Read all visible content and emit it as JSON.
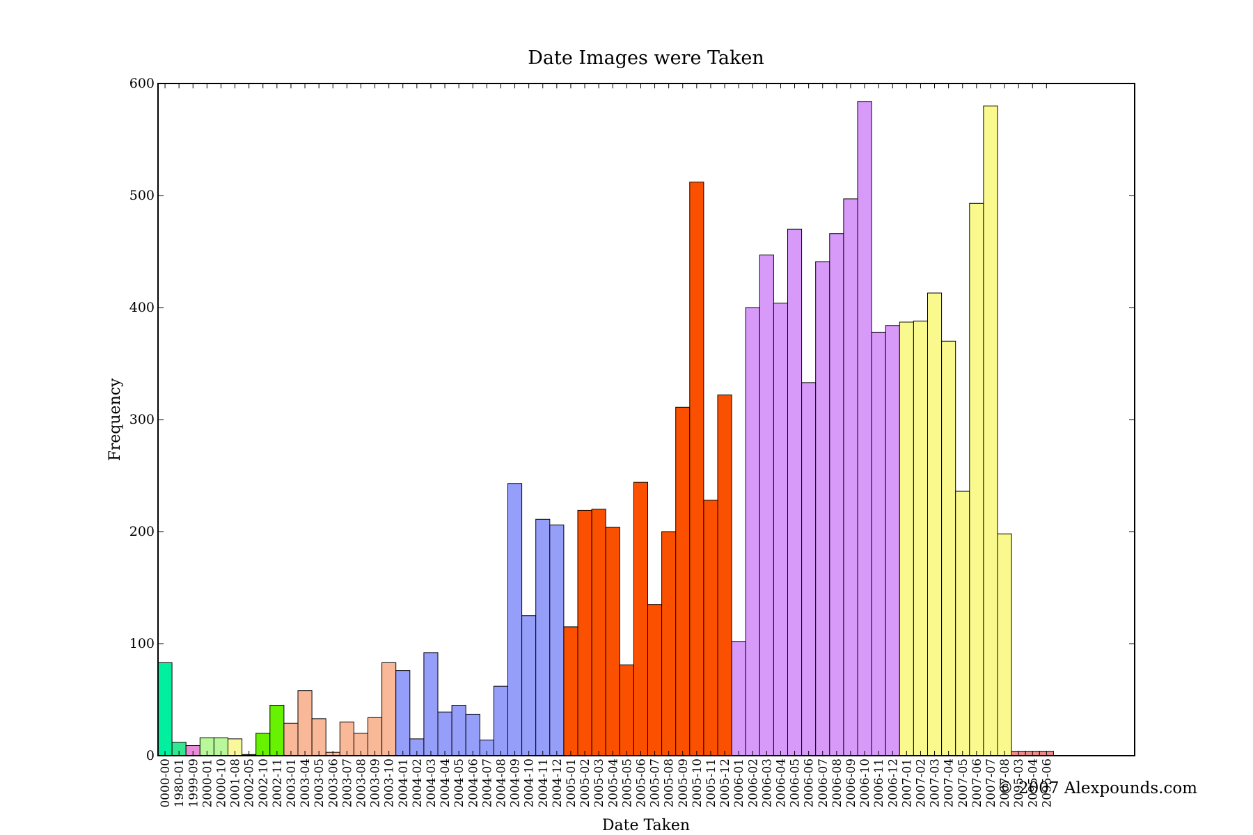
{
  "chart_data": {
    "type": "bar",
    "title": "Date Images were Taken",
    "xlabel": "Date Taken",
    "ylabel": "Frequency",
    "ylim": [
      0,
      600
    ],
    "yticks": [
      0,
      100,
      200,
      300,
      400,
      500,
      600
    ],
    "grid": false,
    "legend": "none",
    "bars": [
      {
        "label": "0000-00",
        "value": 83,
        "color": "#00f0a0"
      },
      {
        "label": "1980-01",
        "value": 12,
        "color": "#33e690"
      },
      {
        "label": "1999-09",
        "value": 9,
        "color": "#e98cd8"
      },
      {
        "label": "2000-01",
        "value": 16,
        "color": "#b8f79a"
      },
      {
        "label": "2000-10",
        "value": 16,
        "color": "#b8f79a"
      },
      {
        "label": "2001-08",
        "value": 15,
        "color": "#f9f89a"
      },
      {
        "label": "2002-05",
        "value": 1,
        "color": "#66f200"
      },
      {
        "label": "2002-10",
        "value": 20,
        "color": "#66f200"
      },
      {
        "label": "2002-11",
        "value": 45,
        "color": "#66f200"
      },
      {
        "label": "2003-01",
        "value": 29,
        "color": "#f9b898"
      },
      {
        "label": "2003-04",
        "value": 58,
        "color": "#f9b898"
      },
      {
        "label": "2003-05",
        "value": 33,
        "color": "#f9b898"
      },
      {
        "label": "2003-06",
        "value": 3,
        "color": "#f9b898"
      },
      {
        "label": "2003-07",
        "value": 30,
        "color": "#f9b898"
      },
      {
        "label": "2003-08",
        "value": 20,
        "color": "#f9b898"
      },
      {
        "label": "2003-09",
        "value": 34,
        "color": "#f9b898"
      },
      {
        "label": "2003-10",
        "value": 83,
        "color": "#f9b898"
      },
      {
        "label": "2004-01",
        "value": 76,
        "color": "#959ef9"
      },
      {
        "label": "2004-02",
        "value": 15,
        "color": "#959ef9"
      },
      {
        "label": "2004-03",
        "value": 92,
        "color": "#959ef9"
      },
      {
        "label": "2004-04",
        "value": 39,
        "color": "#959ef9"
      },
      {
        "label": "2004-05",
        "value": 45,
        "color": "#959ef9"
      },
      {
        "label": "2004-06",
        "value": 37,
        "color": "#959ef9"
      },
      {
        "label": "2004-07",
        "value": 14,
        "color": "#959ef9"
      },
      {
        "label": "2004-08",
        "value": 62,
        "color": "#959ef9"
      },
      {
        "label": "2004-09",
        "value": 243,
        "color": "#959ef9"
      },
      {
        "label": "2004-10",
        "value": 125,
        "color": "#959ef9"
      },
      {
        "label": "2004-11",
        "value": 211,
        "color": "#959ef9"
      },
      {
        "label": "2004-12",
        "value": 206,
        "color": "#959ef9"
      },
      {
        "label": "2005-01",
        "value": 115,
        "color": "#fa5000"
      },
      {
        "label": "2005-02",
        "value": 219,
        "color": "#fa5000"
      },
      {
        "label": "2005-03",
        "value": 220,
        "color": "#fa5000"
      },
      {
        "label": "2005-04",
        "value": 204,
        "color": "#fa5000"
      },
      {
        "label": "2005-05",
        "value": 81,
        "color": "#fa5000"
      },
      {
        "label": "2005-06",
        "value": 244,
        "color": "#fa5000"
      },
      {
        "label": "2005-07",
        "value": 135,
        "color": "#fa5000"
      },
      {
        "label": "2005-08",
        "value": 200,
        "color": "#fa5000"
      },
      {
        "label": "2005-09",
        "value": 311,
        "color": "#fa5000"
      },
      {
        "label": "2005-10",
        "value": 512,
        "color": "#fa5000"
      },
      {
        "label": "2005-11",
        "value": 228,
        "color": "#fa5000"
      },
      {
        "label": "2005-12",
        "value": 322,
        "color": "#fa5000"
      },
      {
        "label": "2006-01",
        "value": 102,
        "color": "#d89af9"
      },
      {
        "label": "2006-02",
        "value": 400,
        "color": "#d89af9"
      },
      {
        "label": "2006-03",
        "value": 447,
        "color": "#d89af9"
      },
      {
        "label": "2006-04",
        "value": 404,
        "color": "#d89af9"
      },
      {
        "label": "2006-05",
        "value": 470,
        "color": "#d89af9"
      },
      {
        "label": "2006-06",
        "value": 333,
        "color": "#d89af9"
      },
      {
        "label": "2006-07",
        "value": 441,
        "color": "#d89af9"
      },
      {
        "label": "2006-08",
        "value": 466,
        "color": "#d89af9"
      },
      {
        "label": "2006-09",
        "value": 497,
        "color": "#d89af9"
      },
      {
        "label": "2006-10",
        "value": 584,
        "color": "#d89af9"
      },
      {
        "label": "2006-11",
        "value": 378,
        "color": "#d89af9"
      },
      {
        "label": "2006-12",
        "value": 384,
        "color": "#d89af9"
      },
      {
        "label": "2007-01",
        "value": 387,
        "color": "#f9f98d"
      },
      {
        "label": "2007-02",
        "value": 388,
        "color": "#f9f98d"
      },
      {
        "label": "2007-03",
        "value": 413,
        "color": "#f9f98d"
      },
      {
        "label": "2007-04",
        "value": 370,
        "color": "#f9f98d"
      },
      {
        "label": "2007-05",
        "value": 236,
        "color": "#f9f98d"
      },
      {
        "label": "2007-06",
        "value": 493,
        "color": "#f9f98d"
      },
      {
        "label": "2007-07",
        "value": 580,
        "color": "#f9f98d"
      },
      {
        "label": "2007-08",
        "value": 198,
        "color": "#f9f98d"
      },
      {
        "label": "2095-03",
        "value": 4,
        "color": "#f08a8a"
      },
      {
        "label": "2095-04",
        "value": 4,
        "color": "#f08a8a"
      },
      {
        "label": "2095-06",
        "value": 4,
        "color": "#f08a8a"
      }
    ]
  },
  "watermark": "© 2007 Alexpounds.com"
}
